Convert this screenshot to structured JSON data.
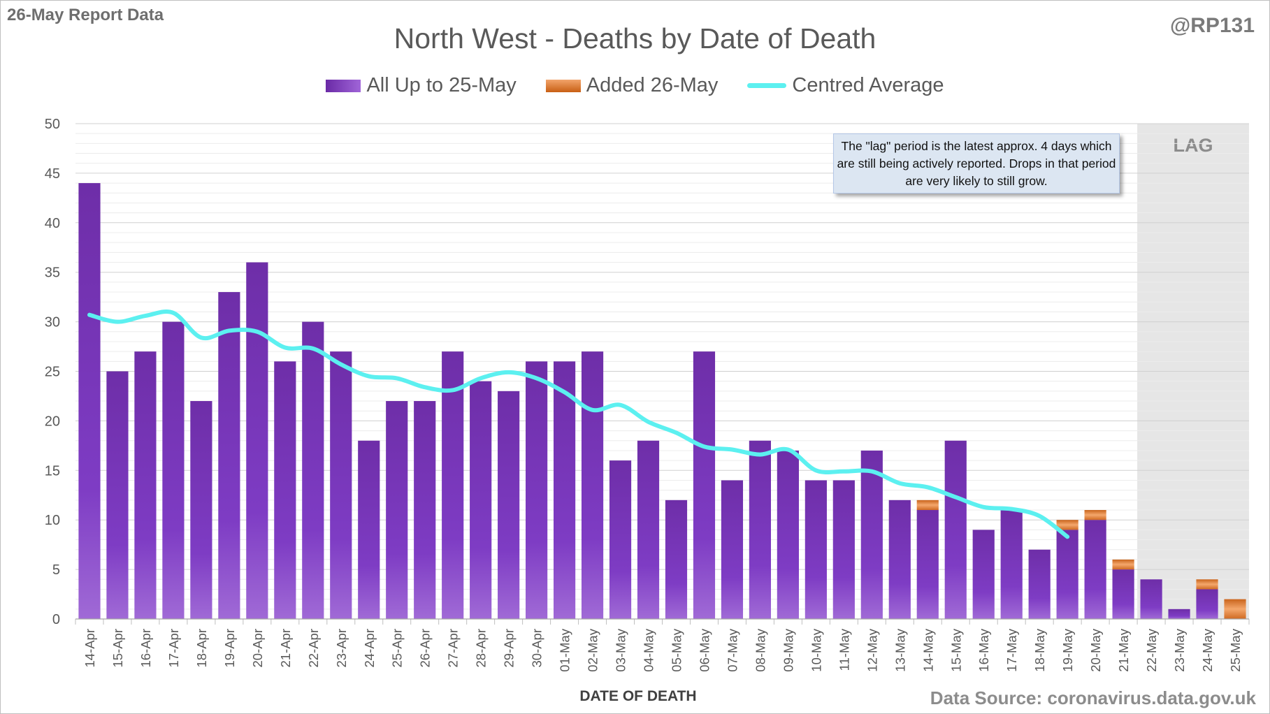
{
  "header": {
    "report": "26-May Report Data",
    "handle": "@RP131",
    "source": "Data Source: coronavirus.data.gov.uk"
  },
  "annotation": "The \"lag\" period is the latest approx. 4 days which are still being actively reported. Drops in that period are very likely to still grow.",
  "colors": {
    "bar_main": "#7b35b8",
    "bar_added": "#e57b2e",
    "average_line": "#5cf0f0",
    "lag_shade": "#e6e6e6"
  },
  "chart_data": {
    "type": "bar",
    "title": "North West - Deaths by Date of Death",
    "xlabel": "DATE OF DEATH",
    "ylabel": "",
    "ylim": [
      0,
      50
    ],
    "yticks": [
      0,
      5,
      10,
      15,
      20,
      25,
      30,
      35,
      40,
      45,
      50
    ],
    "grid": true,
    "legend": "top-center",
    "lag_label": "LAG",
    "lag_categories": [
      "22-May",
      "23-May",
      "24-May",
      "25-May"
    ],
    "categories": [
      "14-Apr",
      "15-Apr",
      "16-Apr",
      "17-Apr",
      "18-Apr",
      "19-Apr",
      "20-Apr",
      "21-Apr",
      "22-Apr",
      "23-Apr",
      "24-Apr",
      "25-Apr",
      "26-Apr",
      "27-Apr",
      "28-Apr",
      "29-Apr",
      "30-Apr",
      "01-May",
      "02-May",
      "03-May",
      "04-May",
      "05-May",
      "06-May",
      "07-May",
      "08-May",
      "09-May",
      "10-May",
      "11-May",
      "12-May",
      "13-May",
      "14-May",
      "15-May",
      "16-May",
      "17-May",
      "18-May",
      "19-May",
      "20-May",
      "21-May",
      "22-May",
      "23-May",
      "24-May",
      "25-May"
    ],
    "series": [
      {
        "name": "All Up to 25-May",
        "values": [
          44,
          25,
          27,
          30,
          22,
          33,
          36,
          26,
          30,
          27,
          18,
          22,
          22,
          27,
          24,
          23,
          26,
          26,
          27,
          16,
          18,
          12,
          27,
          14,
          18,
          17,
          14,
          14,
          17,
          12,
          11,
          18,
          9,
          11,
          7,
          9,
          10,
          5,
          4,
          1,
          3,
          0
        ]
      },
      {
        "name": "Added 26-May",
        "values": [
          0,
          0,
          0,
          0,
          0,
          0,
          0,
          0,
          0,
          0,
          0,
          0,
          0,
          0,
          0,
          0,
          0,
          0,
          0,
          0,
          0,
          0,
          0,
          0,
          0,
          0,
          0,
          0,
          0,
          0,
          1,
          0,
          0,
          0,
          0,
          1,
          1,
          1,
          0,
          0,
          1,
          2
        ]
      },
      {
        "name": "Centred Average",
        "values": [
          30.7,
          30.0,
          30.6,
          30.9,
          28.4,
          29.1,
          29.0,
          27.4,
          27.3,
          25.7,
          24.5,
          24.3,
          23.4,
          23.1,
          24.3,
          24.9,
          24.3,
          22.9,
          21.1,
          21.6,
          19.9,
          18.8,
          17.4,
          17.1,
          16.6,
          17.1,
          15.0,
          14.9,
          14.9,
          13.7,
          13.3,
          12.3,
          11.3,
          11.1,
          10.4,
          8.3,
          null,
          null,
          null,
          null,
          null,
          null
        ]
      }
    ]
  }
}
